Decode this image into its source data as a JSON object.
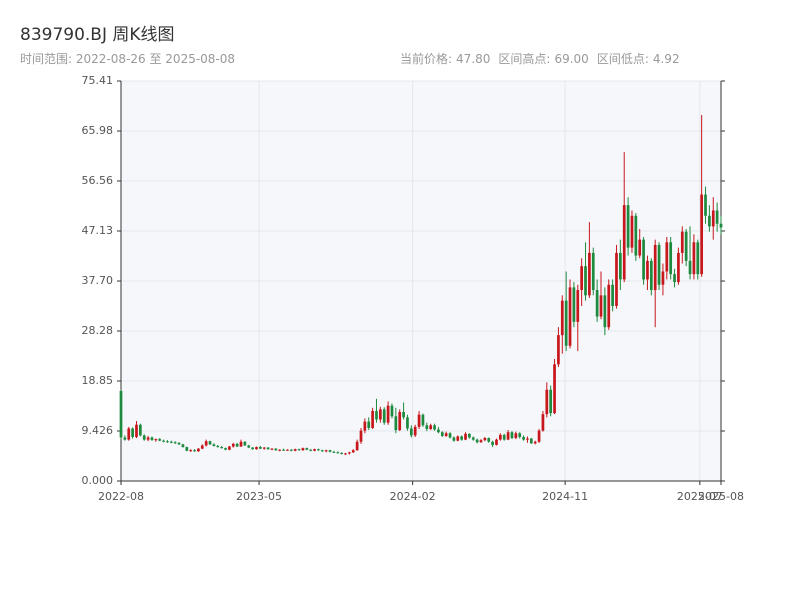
{
  "chart_data": {
    "type": "candlestick",
    "title": "839790.BJ 周K线图",
    "range_label": "时间范围:",
    "start": "2022-08-26",
    "range_sep": "至",
    "end": "2025-08-08",
    "stats": [
      {
        "label": "当前价格:",
        "value": 47.8,
        "value_label": "47.80"
      },
      {
        "label": "区间高点:",
        "value": 69,
        "value_label": "69.00"
      },
      {
        "label": "区间低点:",
        "value": 4.92,
        "value_label": "4.92"
      }
    ],
    "up_color": "#c8161d",
    "down_color": "#1e8a3e",
    "grid": true,
    "ylim": [
      0,
      75.41
    ],
    "yticks": [
      {
        "value": 0,
        "label": "0.000"
      },
      9.426,
      18.85,
      28.28,
      {
        "value": 37.7,
        "label": "37.70"
      },
      47.13,
      56.56,
      65.98,
      75.41
    ],
    "xticks": [
      {
        "value": "2022-08-26",
        "label": "2022-08"
      },
      {
        "value": "2023-05-01",
        "label": "2023-05"
      },
      {
        "value": "2024-02-01",
        "label": "2024-02"
      },
      {
        "value": "2024-11-01",
        "label": "2024-11"
      },
      {
        "value": "2025-07-01",
        "label": "2025-07"
      },
      {
        "value": "2025-08-08",
        "label": "2025-08"
      }
    ],
    "ohlc": [
      [
        17.0,
        17.2,
        7.9,
        8.2
      ],
      [
        8.2,
        8.6,
        7.6,
        7.8
      ],
      [
        7.8,
        10.2,
        7.6,
        9.9
      ],
      [
        9.9,
        10.1,
        8.0,
        8.3
      ],
      [
        8.3,
        11.3,
        8.1,
        10.6
      ],
      [
        10.6,
        10.8,
        8.4,
        8.6
      ],
      [
        8.6,
        8.8,
        7.6,
        7.8
      ],
      [
        7.8,
        8.5,
        7.5,
        8.2
      ],
      [
        8.2,
        8.4,
        7.6,
        7.7
      ],
      [
        7.7,
        8.0,
        7.4,
        7.9
      ],
      [
        7.9,
        8.1,
        7.5,
        7.6
      ],
      [
        7.6,
        7.8,
        7.3,
        7.5
      ],
      [
        7.5,
        7.7,
        7.2,
        7.4
      ],
      [
        7.4,
        7.6,
        7.1,
        7.3
      ],
      [
        7.3,
        7.5,
        7.0,
        7.2
      ],
      [
        7.2,
        7.3,
        6.8,
        6.9
      ],
      [
        6.9,
        7.0,
        6.3,
        6.4
      ],
      [
        6.4,
        6.5,
        5.6,
        5.7
      ],
      [
        5.7,
        6.0,
        5.5,
        5.8
      ],
      [
        5.8,
        6.0,
        5.5,
        5.6
      ],
      [
        5.6,
        6.2,
        5.5,
        6.1
      ],
      [
        6.1,
        6.9,
        6.0,
        6.7
      ],
      [
        6.7,
        7.8,
        6.5,
        7.5
      ],
      [
        7.5,
        7.6,
        6.8,
        6.9
      ],
      [
        6.9,
        7.1,
        6.5,
        6.6
      ],
      [
        6.6,
        6.8,
        6.3,
        6.4
      ],
      [
        6.4,
        6.6,
        6.1,
        6.2
      ],
      [
        6.2,
        6.3,
        5.8,
        5.9
      ],
      [
        5.9,
        6.6,
        5.8,
        6.5
      ],
      [
        6.5,
        7.2,
        6.3,
        7.0
      ],
      [
        7.0,
        7.2,
        6.4,
        6.5
      ],
      [
        6.5,
        7.8,
        6.4,
        7.4
      ],
      [
        7.4,
        7.5,
        6.6,
        6.7
      ],
      [
        6.7,
        6.8,
        6.2,
        6.3
      ],
      [
        6.3,
        6.4,
        5.9,
        6.0
      ],
      [
        6.0,
        6.5,
        5.9,
        6.4
      ],
      [
        6.4,
        6.6,
        6.0,
        6.1
      ],
      [
        6.1,
        6.4,
        5.9,
        6.3
      ],
      [
        6.3,
        6.4,
        5.9,
        6.0
      ],
      [
        6.0,
        6.2,
        5.8,
        6.1
      ],
      [
        6.1,
        6.2,
        5.7,
        5.8
      ],
      [
        5.8,
        6.0,
        5.6,
        5.9
      ],
      [
        5.9,
        6.1,
        5.7,
        5.8
      ],
      [
        5.8,
        6.0,
        5.7,
        5.9
      ],
      [
        5.9,
        6.0,
        5.6,
        5.7
      ],
      [
        5.7,
        6.1,
        5.6,
        6.0
      ],
      [
        6.0,
        6.1,
        5.7,
        5.8
      ],
      [
        5.8,
        6.3,
        5.7,
        6.2
      ],
      [
        6.2,
        6.3,
        5.8,
        5.9
      ],
      [
        5.9,
        6.0,
        5.6,
        5.7
      ],
      [
        5.7,
        6.1,
        5.6,
        6.0
      ],
      [
        6.0,
        6.1,
        5.7,
        5.8
      ],
      [
        5.8,
        5.9,
        5.5,
        5.6
      ],
      [
        5.6,
        5.9,
        5.4,
        5.8
      ],
      [
        5.8,
        5.9,
        5.4,
        5.5
      ],
      [
        5.5,
        5.7,
        5.3,
        5.4
      ],
      [
        5.4,
        5.6,
        5.2,
        5.3
      ],
      [
        5.3,
        5.4,
        5.0,
        5.1
      ],
      [
        5.1,
        5.3,
        4.92,
        5.2
      ],
      [
        5.2,
        5.5,
        5.0,
        5.4
      ],
      [
        5.4,
        6.0,
        5.3,
        5.8
      ],
      [
        5.8,
        7.8,
        5.7,
        7.4
      ],
      [
        7.4,
        10.0,
        7.0,
        9.5
      ],
      [
        9.5,
        11.8,
        9.0,
        11.2
      ],
      [
        11.2,
        12.0,
        9.6,
        10.0
      ],
      [
        10.0,
        13.8,
        9.8,
        13.2
      ],
      [
        13.2,
        15.5,
        11.0,
        11.6
      ],
      [
        11.6,
        14.0,
        11.0,
        13.5
      ],
      [
        13.5,
        13.9,
        10.6,
        11.0
      ],
      [
        11.0,
        15.0,
        10.6,
        14.2
      ],
      [
        14.2,
        14.6,
        11.8,
        12.2
      ],
      [
        12.2,
        13.8,
        9.0,
        9.6
      ],
      [
        9.6,
        13.5,
        9.4,
        13.0
      ],
      [
        13.0,
        14.8,
        11.6,
        12.0
      ],
      [
        12.0,
        12.5,
        9.5,
        9.9
      ],
      [
        9.9,
        10.5,
        8.2,
        8.6
      ],
      [
        8.6,
        10.6,
        8.3,
        10.2
      ],
      [
        10.2,
        13.2,
        9.8,
        12.5
      ],
      [
        12.5,
        12.7,
        10.2,
        10.5
      ],
      [
        10.5,
        11.0,
        9.4,
        9.8
      ],
      [
        9.8,
        10.8,
        9.6,
        10.5
      ],
      [
        10.5,
        10.8,
        9.5,
        9.7
      ],
      [
        9.7,
        10.2,
        9.0,
        9.2
      ],
      [
        9.2,
        9.4,
        8.3,
        8.5
      ],
      [
        8.5,
        9.3,
        8.3,
        9.0
      ],
      [
        9.0,
        9.2,
        8.0,
        8.2
      ],
      [
        8.2,
        8.4,
        7.4,
        7.6
      ],
      [
        7.6,
        8.6,
        7.5,
        8.4
      ],
      [
        8.4,
        8.6,
        7.6,
        7.8
      ],
      [
        7.8,
        9.2,
        7.7,
        8.9
      ],
      [
        8.9,
        9.0,
        8.0,
        8.2
      ],
      [
        8.2,
        8.4,
        7.6,
        7.8
      ],
      [
        7.8,
        8.0,
        7.1,
        7.3
      ],
      [
        7.3,
        7.9,
        7.2,
        7.7
      ],
      [
        7.7,
        8.3,
        7.5,
        8.1
      ],
      [
        8.1,
        8.2,
        7.2,
        7.4
      ],
      [
        7.4,
        7.6,
        6.4,
        6.8
      ],
      [
        6.8,
        8.0,
        6.7,
        7.8
      ],
      [
        7.8,
        9.0,
        7.6,
        8.7
      ],
      [
        8.7,
        8.9,
        7.6,
        7.8
      ],
      [
        7.8,
        9.6,
        7.7,
        9.2
      ],
      [
        9.2,
        9.4,
        7.9,
        8.1
      ],
      [
        8.1,
        9.3,
        7.9,
        9.0
      ],
      [
        9.0,
        9.2,
        8.0,
        8.3
      ],
      [
        8.3,
        8.6,
        7.6,
        7.8
      ],
      [
        7.8,
        8.4,
        7.2,
        8.0
      ],
      [
        8.0,
        8.1,
        7.0,
        7.1
      ],
      [
        7.1,
        7.6,
        6.9,
        7.4
      ],
      [
        7.4,
        9.8,
        7.2,
        9.5
      ],
      [
        9.5,
        13.2,
        9.3,
        12.6
      ],
      [
        12.6,
        18.6,
        12.0,
        17.2
      ],
      [
        17.2,
        18.0,
        12.2,
        12.8
      ],
      [
        12.8,
        23.0,
        12.6,
        22.0
      ],
      [
        22.0,
        29.0,
        21.5,
        27.5
      ],
      [
        27.5,
        35.0,
        24.0,
        34.0
      ],
      [
        34.0,
        39.5,
        24.5,
        25.5
      ],
      [
        25.5,
        38.0,
        25.0,
        36.5
      ],
      [
        36.5,
        37.5,
        29.0,
        30.0
      ],
      [
        30.0,
        37.0,
        24.5,
        36.0
      ],
      [
        36.0,
        42.0,
        33.0,
        40.5
      ],
      [
        40.5,
        45.0,
        34.0,
        35.0
      ],
      [
        35.0,
        48.8,
        34.5,
        43.0
      ],
      [
        43.0,
        44.0,
        35.0,
        36.0
      ],
      [
        36.0,
        38.0,
        30.0,
        31.0
      ],
      [
        31.0,
        39.5,
        30.5,
        35.0
      ],
      [
        35.0,
        36.5,
        27.5,
        29.0
      ],
      [
        29.0,
        38.0,
        28.5,
        37.0
      ],
      [
        37.0,
        38.0,
        32.0,
        33.0
      ],
      [
        33.0,
        44.5,
        32.5,
        43.0
      ],
      [
        43.0,
        45.5,
        36.0,
        38.0
      ],
      [
        38.0,
        62.0,
        37.5,
        52.0
      ],
      [
        52.0,
        53.5,
        42.5,
        44.0
      ],
      [
        44.0,
        51.0,
        43.0,
        50.0
      ],
      [
        50.0,
        50.5,
        41.5,
        42.5
      ],
      [
        42.5,
        47.5,
        42.0,
        45.5
      ],
      [
        45.5,
        46.0,
        37.0,
        38.0
      ],
      [
        38.0,
        42.5,
        36.0,
        41.5
      ],
      [
        41.5,
        42.0,
        35.0,
        36.0
      ],
      [
        36.0,
        45.5,
        29.0,
        44.5
      ],
      [
        44.5,
        45.0,
        36.0,
        37.0
      ],
      [
        37.0,
        41.0,
        35.0,
        39.5
      ],
      [
        39.5,
        46.0,
        38.0,
        45.0
      ],
      [
        45.0,
        46.0,
        38.0,
        39.0
      ],
      [
        39.0,
        40.0,
        36.5,
        37.5
      ],
      [
        37.5,
        44.0,
        37.0,
        43.0
      ],
      [
        43.0,
        48.0,
        41.0,
        47.0
      ],
      [
        47.0,
        47.5,
        40.5,
        41.5
      ],
      [
        41.5,
        48.0,
        38.0,
        39.0
      ],
      [
        39.0,
        46.5,
        38.0,
        45.0
      ],
      [
        45.0,
        45.5,
        38.0,
        39.0
      ],
      [
        39.0,
        69.0,
        38.5,
        54.0
      ],
      [
        54.0,
        55.5,
        48.5,
        50.0
      ],
      [
        50.0,
        52.0,
        47.0,
        48.0
      ],
      [
        48.0,
        53.5,
        45.5,
        51.0
      ],
      [
        51.0,
        52.5,
        47.0,
        48.5
      ],
      [
        48.5,
        50.0,
        46.5,
        47.8
      ]
    ]
  }
}
